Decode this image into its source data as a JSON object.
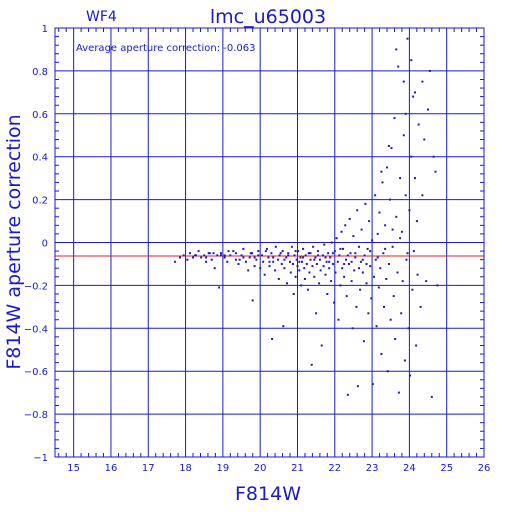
{
  "chart_data": {
    "type": "scatter",
    "chip_label": "WF4",
    "title": "lmc_u65003",
    "annotation": "Average aperture correction: -0.063",
    "xlabel": "F814W",
    "ylabel": "F814W aperture correction",
    "xlim": [
      14.5,
      26
    ],
    "ylim": [
      -1,
      1
    ],
    "x_ticks": [
      15,
      16,
      17,
      18,
      19,
      20,
      21,
      22,
      23,
      24,
      25,
      26
    ],
    "y_ticks": [
      -1,
      -0.8,
      -0.6,
      -0.4,
      -0.2,
      0,
      0.2,
      0.4,
      0.6,
      0.8,
      1
    ],
    "x_tick_labels": [
      "15",
      "16",
      "17",
      "18",
      "19",
      "20",
      "21",
      "22",
      "23",
      "24",
      "25",
      "26"
    ],
    "y_tick_labels": [
      "−1",
      "−0.8",
      "−0.6",
      "−0.4",
      "−0.2",
      "0",
      "0.2",
      "0.4",
      "0.6",
      "0.8",
      "1"
    ],
    "grid": true,
    "reference_line_y": -0.063,
    "colors": {
      "axes": "#1a1acc",
      "points": "#1a1acc",
      "reference_line": "#e02020",
      "background": "#ffffff"
    },
    "points": [
      [
        17.72,
        -0.09
      ],
      [
        17.85,
        -0.07
      ],
      [
        17.95,
        -0.06
      ],
      [
        18.05,
        -0.08
      ],
      [
        18.12,
        -0.05
      ],
      [
        18.2,
        -0.07
      ],
      [
        18.28,
        -0.06
      ],
      [
        18.35,
        -0.04
      ],
      [
        18.42,
        -0.07
      ],
      [
        18.5,
        -0.06
      ],
      [
        18.55,
        -0.09
      ],
      [
        18.62,
        -0.05
      ],
      [
        18.7,
        -0.08
      ],
      [
        18.78,
        -0.12
      ],
      [
        18.85,
        -0.06
      ],
      [
        18.9,
        -0.21
      ],
      [
        18.95,
        -0.05
      ],
      [
        19.05,
        -0.07
      ],
      [
        19.12,
        -0.09
      ],
      [
        19.2,
        -0.06
      ],
      [
        19.28,
        -0.04
      ],
      [
        19.35,
        -0.08
      ],
      [
        19.42,
        -0.1
      ],
      [
        19.5,
        -0.06
      ],
      [
        19.55,
        -0.03
      ],
      [
        19.62,
        -0.09
      ],
      [
        19.68,
        -0.13
      ],
      [
        19.72,
        -0.07
      ],
      [
        19.78,
        -0.05
      ],
      [
        19.8,
        -0.27
      ],
      [
        19.85,
        -0.11
      ],
      [
        19.9,
        -0.08
      ],
      [
        19.95,
        -0.04
      ],
      [
        20.0,
        -0.12
      ],
      [
        20.05,
        -0.06
      ],
      [
        20.08,
        -0.09
      ],
      [
        20.12,
        -0.15
      ],
      [
        20.18,
        -0.03
      ],
      [
        20.22,
        -0.07
      ],
      [
        20.25,
        -0.11
      ],
      [
        20.3,
        -0.05
      ],
      [
        20.32,
        -0.45
      ],
      [
        20.35,
        -0.09
      ],
      [
        20.4,
        -0.13
      ],
      [
        20.42,
        -0.02
      ],
      [
        20.48,
        -0.08
      ],
      [
        20.5,
        -0.17
      ],
      [
        20.52,
        -0.06
      ],
      [
        20.58,
        -0.1
      ],
      [
        20.6,
        -0.04
      ],
      [
        20.62,
        -0.39
      ],
      [
        20.65,
        -0.12
      ],
      [
        20.7,
        -0.07
      ],
      [
        20.72,
        -0.19
      ],
      [
        20.75,
        -0.05
      ],
      [
        20.8,
        -0.09
      ],
      [
        20.82,
        -0.14
      ],
      [
        20.85,
        -0.02
      ],
      [
        20.88,
        -0.1
      ],
      [
        20.9,
        -0.24
      ],
      [
        20.92,
        -0.06
      ],
      [
        20.95,
        -0.16
      ],
      [
        20.98,
        -0.08
      ],
      [
        21.0,
        -0.11
      ],
      [
        21.02,
        -0.04
      ],
      [
        21.05,
        -0.13
      ],
      [
        21.08,
        -0.07
      ],
      [
        21.1,
        -0.2
      ],
      [
        21.12,
        -0.09
      ],
      [
        21.15,
        -0.03
      ],
      [
        21.18,
        -0.12
      ],
      [
        21.2,
        -0.17
      ],
      [
        21.22,
        -0.06
      ],
      [
        21.25,
        -0.1
      ],
      [
        21.28,
        -0.22
      ],
      [
        21.3,
        -0.05
      ],
      [
        21.32,
        -0.14
      ],
      [
        21.35,
        -0.08
      ],
      [
        21.38,
        -0.57
      ],
      [
        21.4,
        -0.11
      ],
      [
        21.42,
        -0.02
      ],
      [
        21.45,
        -0.16
      ],
      [
        21.48,
        -0.07
      ],
      [
        21.5,
        -0.33
      ],
      [
        21.52,
        -0.1
      ],
      [
        21.55,
        -0.04
      ],
      [
        21.58,
        -0.19
      ],
      [
        21.6,
        -0.08
      ],
      [
        21.62,
        -0.13
      ],
      [
        21.65,
        -0.48
      ],
      [
        21.68,
        -0.06
      ],
      [
        21.7,
        -0.11
      ],
      [
        21.72,
        -0.01
      ],
      [
        21.75,
        -0.15
      ],
      [
        21.78,
        -0.09
      ],
      [
        21.8,
        -0.24
      ],
      [
        21.82,
        -0.05
      ],
      [
        21.85,
        -0.12
      ],
      [
        21.88,
        -0.07
      ],
      [
        21.9,
        -0.18
      ],
      [
        21.92,
        0.0
      ],
      [
        21.95,
        -0.1
      ],
      [
        21.98,
        -0.28
      ],
      [
        22.0,
        -0.04
      ],
      [
        22.02,
        -0.14
      ],
      [
        22.05,
        0.02
      ],
      [
        22.08,
        -0.09
      ],
      [
        22.1,
        -0.36
      ],
      [
        22.12,
        -0.06
      ],
      [
        22.15,
        -0.2
      ],
      [
        22.18,
        0.05
      ],
      [
        22.2,
        -0.12
      ],
      [
        22.22,
        -0.03
      ],
      [
        22.25,
        -0.16
      ],
      [
        22.28,
        0.08
      ],
      [
        22.3,
        -0.08
      ],
      [
        22.32,
        -0.25
      ],
      [
        22.35,
        -0.71
      ],
      [
        22.38,
        -0.1
      ],
      [
        22.4,
        0.11
      ],
      [
        22.42,
        -0.05
      ],
      [
        22.45,
        -0.18
      ],
      [
        22.48,
        -0.4
      ],
      [
        22.5,
        0.03
      ],
      [
        22.52,
        -0.13
      ],
      [
        22.55,
        -0.07
      ],
      [
        22.58,
        -0.3
      ],
      [
        22.6,
        0.15
      ],
      [
        22.62,
        -0.67
      ],
      [
        22.65,
        -0.02
      ],
      [
        22.68,
        -0.22
      ],
      [
        22.7,
        -0.09
      ],
      [
        22.72,
        0.06
      ],
      [
        22.75,
        -0.14
      ],
      [
        22.78,
        -0.46
      ],
      [
        22.8,
        -0.06
      ],
      [
        22.82,
        0.18
      ],
      [
        22.85,
        -0.19
      ],
      [
        22.88,
        -0.03
      ],
      [
        22.9,
        -0.33
      ],
      [
        22.92,
        0.1
      ],
      [
        22.95,
        -0.11
      ],
      [
        22.98,
        -0.26
      ],
      [
        23.0,
        0.01
      ],
      [
        23.02,
        -0.66
      ],
      [
        23.05,
        -0.16
      ],
      [
        23.08,
        0.22
      ],
      [
        23.1,
        -0.08
      ],
      [
        23.12,
        -0.39
      ],
      [
        23.15,
        0.04
      ],
      [
        23.18,
        -0.21
      ],
      [
        23.2,
        0.14
      ],
      [
        23.22,
        -0.12
      ],
      [
        23.25,
        -0.52
      ],
      [
        23.28,
        0.28
      ],
      [
        23.3,
        -0.05
      ],
      [
        23.32,
        -0.3
      ],
      [
        23.35,
        0.08
      ],
      [
        23.38,
        -0.17
      ],
      [
        23.4,
        0.35
      ],
      [
        23.42,
        -0.6
      ],
      [
        23.45,
        -0.1
      ],
      [
        23.48,
        0.2
      ],
      [
        23.5,
        -0.36
      ],
      [
        23.52,
        0.44
      ],
      [
        23.55,
        -0.02
      ],
      [
        23.58,
        -0.25
      ],
      [
        23.6,
        0.58
      ],
      [
        23.62,
        -0.45
      ],
      [
        23.65,
        0.12
      ],
      [
        23.68,
        -0.14
      ],
      [
        23.7,
        0.82
      ],
      [
        23.72,
        -0.7
      ],
      [
        23.75,
        0.3
      ],
      [
        23.78,
        -0.33
      ],
      [
        23.8,
        0.05
      ],
      [
        23.82,
        -0.18
      ],
      [
        23.85,
        0.5
      ],
      [
        23.88,
        -0.55
      ],
      [
        23.9,
        0.22
      ],
      [
        23.92,
        -0.08
      ],
      [
        23.95,
        0.95
      ],
      [
        23.98,
        -0.4
      ],
      [
        24.0,
        0.15
      ],
      [
        24.02,
        -0.62
      ],
      [
        24.05,
        0.4
      ],
      [
        24.08,
        -0.22
      ],
      [
        24.1,
        0.68
      ],
      [
        24.12,
        -0.04
      ],
      [
        24.15,
        0.3
      ],
      [
        24.18,
        -0.48
      ],
      [
        24.2,
        0.1
      ],
      [
        24.22,
        -0.15
      ],
      [
        24.25,
        0.55
      ],
      [
        24.3,
        -0.3
      ],
      [
        24.35,
        0.22
      ],
      [
        24.4,
        0.48
      ],
      [
        24.45,
        -0.18
      ],
      [
        24.5,
        0.62
      ],
      [
        24.55,
        0.8
      ],
      [
        24.6,
        -0.72
      ],
      [
        24.65,
        0.4
      ],
      [
        24.7,
        0.33
      ],
      [
        24.75,
        -0.2
      ],
      [
        23.95,
        -0.05
      ],
      [
        23.75,
        0.02
      ],
      [
        23.55,
        0.06
      ],
      [
        23.35,
        -0.03
      ],
      [
        23.15,
        -0.07
      ],
      [
        22.95,
        -0.04
      ],
      [
        22.75,
        -0.08
      ],
      [
        22.55,
        -0.05
      ],
      [
        22.35,
        -0.06
      ],
      [
        22.15,
        -0.03
      ],
      [
        21.95,
        -0.05
      ],
      [
        21.75,
        -0.07
      ],
      [
        21.55,
        -0.06
      ],
      [
        21.35,
        -0.05
      ],
      [
        21.15,
        -0.07
      ],
      [
        20.95,
        -0.04
      ],
      [
        20.75,
        -0.06
      ],
      [
        20.55,
        -0.05
      ],
      [
        20.35,
        -0.07
      ],
      [
        20.15,
        -0.04
      ],
      [
        19.95,
        -0.06
      ],
      [
        19.75,
        -0.05
      ],
      [
        19.55,
        -0.07
      ],
      [
        19.35,
        -0.05
      ],
      [
        19.15,
        -0.04
      ],
      [
        18.95,
        -0.06
      ],
      [
        18.75,
        -0.05
      ],
      [
        18.55,
        -0.07
      ],
      [
        23.85,
        0.75
      ],
      [
        23.65,
        0.9
      ],
      [
        24.05,
        0.85
      ],
      [
        23.45,
        0.45
      ],
      [
        23.25,
        0.33
      ],
      [
        24.15,
        0.7
      ],
      [
        24.35,
        0.75
      ],
      [
        23.9,
        0.6
      ],
      [
        22.85,
        -0.1
      ],
      [
        22.65,
        -0.12
      ],
      [
        22.45,
        -0.09
      ],
      [
        22.25,
        -0.1
      ],
      [
        21.85,
        -0.09
      ],
      [
        21.45,
        -0.08
      ],
      [
        21.05,
        -0.09
      ],
      [
        20.65,
        -0.08
      ],
      [
        20.25,
        -0.09
      ],
      [
        19.85,
        -0.07
      ],
      [
        19.45,
        -0.08
      ],
      [
        19.05,
        -0.06
      ],
      [
        18.65,
        -0.05
      ],
      [
        18.25,
        -0.06
      ]
    ]
  }
}
